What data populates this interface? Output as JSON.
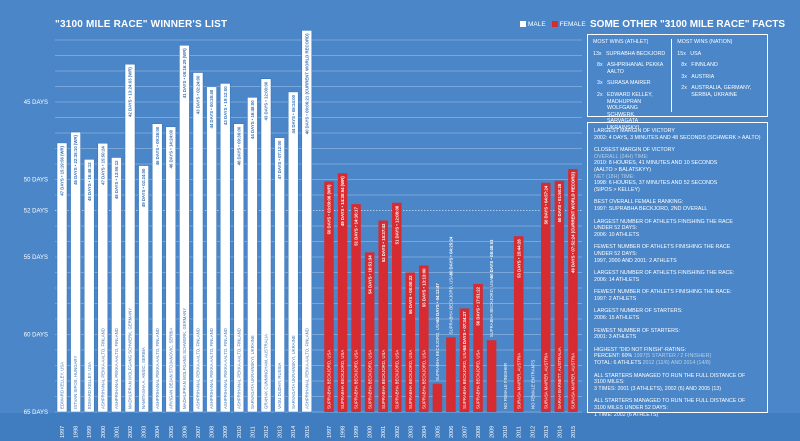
{
  "title": "\"3100 MILE RACE\" WINNER'S LIST",
  "legend": [
    {
      "label": "MALE",
      "color": "#ffffff"
    },
    {
      "label": "FEMALE",
      "color": "#d62b30"
    }
  ],
  "colors": {
    "background": "#4a86c8",
    "year_strip": "#3f7cc0",
    "male_bar": "#ffffff",
    "female_bar": "#d62b30",
    "male_text": "#3a74b8",
    "grid": "#7aa7da"
  },
  "chart_data": {
    "type": "bar",
    "title": "\"3100 MILE RACE\" WINNER'S LIST",
    "xlabel": "",
    "ylabel": "",
    "y_unit": "days",
    "ylim": [
      41,
      65
    ],
    "y_inverted": true,
    "y_ticks": [
      {
        "value": 45,
        "label": "45 DAYS"
      },
      {
        "value": 50,
        "label": "50 DAYS"
      },
      {
        "value": 52,
        "label": "52 DAYS"
      },
      {
        "value": 55,
        "label": "55 DAYS"
      },
      {
        "value": 60,
        "label": "60 DAYS"
      },
      {
        "value": 65,
        "label": "65 DAYS"
      }
    ],
    "grid": true,
    "reference_line": {
      "value": 52,
      "style": "dotted"
    },
    "legend_placement": "top-right",
    "series": [
      {
        "name": "MALE",
        "color": "#ffffff",
        "points": [
          {
            "year": "1997",
            "days": 47.64,
            "label": "47 DAYS • 15:19:56 (WR)",
            "winner": "EDWARD KELLEY, USA"
          },
          {
            "year": "1998",
            "days": 46.94,
            "label": "46 DAYS • 22:35:10 (WR)",
            "winner": "ISTVAN SIPOS, HUNGARY"
          },
          {
            "year": "1999",
            "days": 48.7,
            "label": "48 DAYS • 16:48:12",
            "winner": "EDWARD KELLEY, USA"
          },
          {
            "year": "2000",
            "days": 47.66,
            "label": "47 DAYS • 15:50:24",
            "winner": "ASHPRIHANAL PEKKA AALTO, FINLAND"
          },
          {
            "year": "2001",
            "days": 48.58,
            "label": "48 DAYS • 13:55:12",
            "winner": "ASHPRIHANAL PEKKA AALTO, FINLAND"
          },
          {
            "year": "2002",
            "days": 42.56,
            "label": "42 DAYS • 13:24:03 (WR)",
            "winner": "MADHUPRAN WOLFGANG SCHWERK, GERMANY"
          },
          {
            "year": "2003",
            "days": 49.1,
            "label": "49 DAYS • 02:24:00",
            "winner": "NAMITASHA A. ANSIC, SERBIA"
          },
          {
            "year": "2004",
            "days": 46.4,
            "label": "46 DAYS • 09:36:00",
            "winner": "ASHPRIHANAL PEKKA AALTO, FINLAND"
          },
          {
            "year": "2005",
            "days": 46.6,
            "label": "46 DAYS • 14:24:00",
            "winner": "ARVIGAN DEJAN STOJANOVIC, SERBIA"
          },
          {
            "year": "2006",
            "days": 41.34,
            "label": "41 DAYS • 08:16:29 (WR)",
            "winner": "MADHUPRAN WOLFGANG SCHWERK, GERMANY"
          },
          {
            "year": "2007",
            "days": 43.1,
            "label": "43 DAYS • 02:24:00",
            "winner": "ASHPRIHANAL PEKKA AALTO, FINLAND"
          },
          {
            "year": "2008",
            "days": 44.02,
            "label": "44 DAYS • 00:28:48",
            "winner": "ASHPRIHANAL PEKKA AALTO, FINLAND"
          },
          {
            "year": "2009",
            "days": 43.8,
            "label": "43 DAYS • 19:12:00",
            "winner": "ASHPRIHANAL PEKKA AALTO, FINLAND"
          },
          {
            "year": "2010",
            "days": 46.4,
            "label": "46 DAYS • 09:36:00",
            "winner": "ASHPRIHANAL PEKKA AALTO, FINLAND"
          },
          {
            "year": "2011",
            "days": 44.7,
            "label": "44 DAYS • 16:48:00",
            "winner": "SARVAGATA UKRAINSKYI, UKRAINE"
          },
          {
            "year": "2012",
            "days": 43.5,
            "label": "43 DAYS • 12:00:00",
            "winner": "GRAHAK CUNNINGHAM, AUSTRALIA"
          },
          {
            "year": "2013",
            "days": 47.3,
            "label": "47 DAYS • 07:12:00",
            "winner": "VASU DUZHIY, RUSSIA"
          },
          {
            "year": "2014",
            "days": 44.35,
            "label": "44 DAYS • 08:24:00",
            "winner": "SARVAGATA UKRAINSKYI, UKRAINE"
          },
          {
            "year": "2015",
            "days": 40.38,
            "label": "40 DAYS • 09:06:21 (CURRENT WORLD RECORD)",
            "winner": "ASHPRIHANAL PEKKA AALTO, FINLAND"
          }
        ]
      },
      {
        "name": "FEMALE",
        "color": "#d62b30",
        "points": [
          {
            "year": "1997",
            "days": 50.13,
            "label": "50 DAYS • 03:09:06 (WR)",
            "winner": "SUPRABHA BECKJORD, USA"
          },
          {
            "year": "1998",
            "days": 49.6,
            "label": "49 DAYS • 14:30:54 (WR)",
            "winner": "SUPRABHA BECKJORD, USA"
          },
          {
            "year": "1999",
            "days": 51.59,
            "label": "51 DAYS • 14:16:17",
            "winner": "SUPRABHA BECKJORD, USA"
          },
          {
            "year": "2000",
            "days": 54.7,
            "label": "54 DAYS • 16:51:34",
            "winner": "SUPRABHA BECKJORD, USA"
          },
          {
            "year": "2001",
            "days": 52.65,
            "label": "52 DAYS • 15:37:43",
            "winner": "SUPRABHA BECKJORD, USA"
          },
          {
            "year": "2002",
            "days": 51.5,
            "label": "51 DAYS • 12:08:06",
            "winner": "SUPRABHA BECKJORD, USA"
          },
          {
            "year": "2003",
            "days": 56.0,
            "label": "56 DAYS • 00:00:22",
            "winner": "SUPRABHA BECKJORD, USA"
          },
          {
            "year": "2004",
            "days": 55.55,
            "label": "55 DAYS • 13:13:00",
            "winner": "SUPRABHA BECKJORD, USA"
          },
          {
            "year": "2005",
            "days": 63.18,
            "label": "63 DAYS • 04:13:47",
            "winner": "SUPRABHA BECKJORD, USA"
          },
          {
            "year": "2006",
            "days": 60.18,
            "label": "60 DAYS • 04:25:24",
            "winner": "SUPRABHA BECKJORD, USA"
          },
          {
            "year": "2007",
            "days": 58.32,
            "label": "58 DAYS • 07:34:27",
            "winner": "SUPRABHA BECKJORD, USA"
          },
          {
            "year": "2008",
            "days": 56.74,
            "label": "56 DAYS • 17:51:22",
            "winner": "SUPRABHA BECKJORD, USA"
          },
          {
            "year": "2009",
            "days": 60.37,
            "label": "60 DAYS • 08:48:51",
            "winner": "SUPRABHA BECKJORD, USA"
          },
          {
            "year": "2010",
            "days": null,
            "label": "",
            "winner": "NO FEMALE FINISHER"
          },
          {
            "year": "2011",
            "days": 53.66,
            "label": "53 DAYS • 15:44:26",
            "winner": "SURASA MAIRER, AUSTRIA"
          },
          {
            "year": "2012",
            "days": null,
            "label": "",
            "winner": "NO FEMALE ENTRANTS"
          },
          {
            "year": "2013",
            "days": 50.21,
            "label": "50 DAYS • 04:57:24",
            "winner": "SURASA MAIRER, AUSTRIA"
          },
          {
            "year": "2014",
            "days": 50.08,
            "label": "50 DAYS • 01:50:28",
            "winner": "SARAH BARNETT, AUSTRALIA"
          },
          {
            "year": "2015",
            "days": 49.33,
            "label": "49 DAYS • 07:52:24 (CURRENT WORLD RECORD)",
            "winner": "SURASA MAIRER, AUSTRIA"
          }
        ]
      }
    ]
  },
  "facts": {
    "title": "SOME OTHER \"3100 MILE RACE\"  FACTS",
    "most_wins_athlet": {
      "heading": "MOST WINS (ATHLET)",
      "items": [
        {
          "count": "13x",
          "name": "SUPRABHA BECKJORD"
        },
        {
          "count": "8x",
          "name": "ASHPRIHANAL PEKKA AALTO"
        },
        {
          "count": "3x",
          "name": "SURASA MAIRER"
        },
        {
          "count": "2x",
          "name": "EDWARD KELLEY, MADHUPRAN WOLFGANG SCHWERK, SARVAGATA UKRAINSKYI"
        }
      ]
    },
    "most_wins_nation": {
      "heading": "MOST WINS (NATION)",
      "items": [
        {
          "count": "15x",
          "name": "USA"
        },
        {
          "count": "8x",
          "name": "FINNLAND"
        },
        {
          "count": "3x",
          "name": "AUSTRIA"
        },
        {
          "count": "2x",
          "name": "AUSTRALIA, GERMANY, SERBIA, UKRAINE"
        }
      ]
    },
    "list": [
      {
        "lines": [
          [
            {
              "t": "LARGEST MARGIN OF VICTORY"
            }
          ],
          [
            {
              "t": "2002: 4 DAYS, 3 MINUTES AND 48 SECONDS (SCHWERK > AALTO)"
            }
          ]
        ]
      },
      {
        "lines": [
          [
            {
              "t": "CLOSEST MARGIN OF VICTORY"
            }
          ],
          [
            {
              "t": "OVERALL (24H) TIME:",
              "muted": true
            }
          ],
          [
            {
              "t": "2010: 8 HOURES, 41 MINUTES AND 10 SECONDS"
            }
          ],
          [
            {
              "t": "(AALTO > BALATSKYY)"
            }
          ],
          [
            {
              "t": "NET (18H) TIME:",
              "muted": true
            }
          ],
          [
            {
              "t": "1998: 6 HOURES, 37 MINUTES AND 52 SECONDS"
            }
          ],
          [
            {
              "t": "(SIPOS > KELLEY)"
            }
          ]
        ]
      },
      {
        "lines": [
          [
            {
              "t": "BEST OVERALL FEMALE RANKING:"
            }
          ],
          [
            {
              "t": "1997: SUPRABHA BECKJORD, 2ND OVERALL"
            }
          ]
        ]
      },
      {
        "lines": [
          [
            {
              "t": "LARGEST NUMBER OF ATHLETS FINISHING THE RACE"
            }
          ],
          [
            {
              "t": "UNDER 52 DAYS:"
            }
          ],
          [
            {
              "t": "2006: 10 ATHLETS"
            }
          ]
        ]
      },
      {
        "lines": [
          [
            {
              "t": "FEWEST NUMBER OF ATHLETS FINISHING THE RACE"
            }
          ],
          [
            {
              "t": "UNDER 52 DAYS:"
            }
          ],
          [
            {
              "t": "1997, 2000 AND 2001: 2 ATHLETS"
            }
          ]
        ]
      },
      {
        "lines": [
          [
            {
              "t": "LARGEST NUMBER OF ATHLETS FINISHING THE RACE:"
            }
          ],
          [
            {
              "t": "2006: 14 ATHLETS"
            }
          ]
        ]
      },
      {
        "lines": [
          [
            {
              "t": "FEWEST NUMBER OF ATHLETS FINISHING THE RACE:"
            }
          ],
          [
            {
              "t": "1997: 2 ATHLETS"
            }
          ]
        ]
      },
      {
        "lines": [
          [
            {
              "t": "LARGEST NUMBER OF STARTERS:"
            }
          ],
          [
            {
              "t": "2006: 15 ATHLETS"
            }
          ]
        ]
      },
      {
        "lines": [
          [
            {
              "t": "FEWEST NUMBER OF STARTERS:"
            }
          ],
          [
            {
              "t": "2001: 3 ATHLETS"
            }
          ]
        ]
      },
      {
        "lines": [
          [
            {
              "t": "HIGHEST \"DID NOT FINISH\"-RATING:"
            }
          ],
          [
            {
              "t": "PERCENT: 60% "
            },
            {
              "t": "1997(5 STARTER / 2 FINISHER)",
              "muted": true
            }
          ],
          [
            {
              "t": "TOTAL: 6 ATHLETS "
            },
            {
              "t": "2012 (12/6) AND 2014 (14/8)",
              "muted": true
            }
          ]
        ]
      },
      {
        "lines": [
          [
            {
              "t": "ALL STARTERS MANAGED TO RUN THE FULL DISTANCE OF"
            }
          ],
          [
            {
              "t": "3100 MILES:"
            }
          ],
          [
            {
              "t": "3 TIMES: 2001 (3 ATHLETS), 2002 (6) AND 2005 (13)"
            }
          ]
        ]
      },
      {
        "lines": [
          [
            {
              "t": "ALL STARTERS MANAGED TO RUN THE FULL DISTANCE OF"
            }
          ],
          [
            {
              "t": "3100 MILES UNDER 52 DAYS:"
            }
          ],
          [
            {
              "t": "1 TIME: 2002 (6 ATHLETS)"
            }
          ]
        ]
      }
    ]
  }
}
